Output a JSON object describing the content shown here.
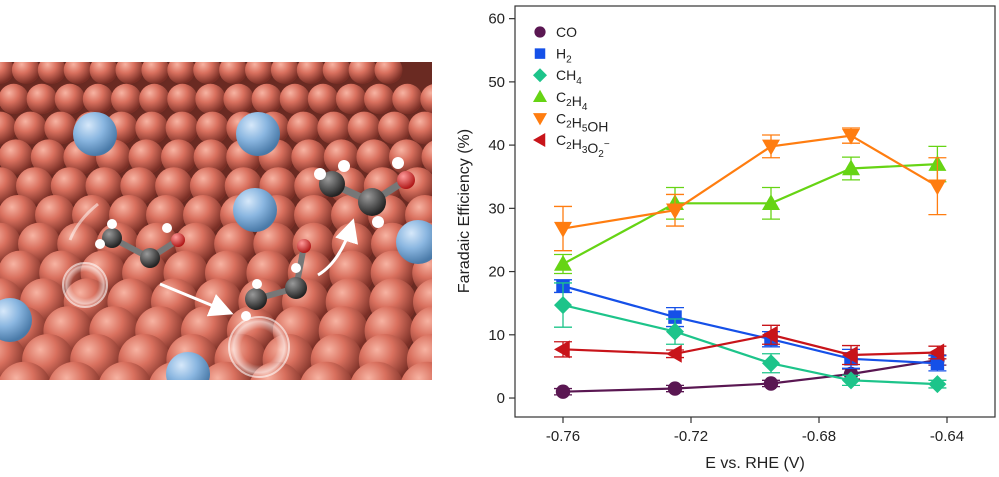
{
  "chart_data": {
    "type": "line",
    "title": "",
    "xlabel": "E vs. RHE (V)",
    "ylabel": "Faradaic Efficiency (%)",
    "xlim": [
      -0.775,
      -0.625
    ],
    "ylim": [
      -3,
      62
    ],
    "xticks": [
      -0.76,
      -0.72,
      -0.68,
      -0.64
    ],
    "xtick_labels": [
      "-0.76",
      "-0.72",
      "-0.68",
      "-0.64"
    ],
    "yticks": [
      0,
      10,
      20,
      30,
      40,
      50,
      60
    ],
    "ytick_labels": [
      "0",
      "10",
      "20",
      "30",
      "40",
      "50",
      "60"
    ],
    "grid": false,
    "legend_position": "top-left",
    "x": [
      -0.76,
      -0.725,
      -0.695,
      -0.67,
      -0.643
    ],
    "series": [
      {
        "name": "CO",
        "legend_parts": [
          [
            "CO",
            ""
          ]
        ],
        "marker": "circle",
        "color": "#5a1752",
        "values": [
          1.0,
          1.5,
          2.3,
          3.8,
          6.0
        ],
        "errors": [
          0.5,
          0.5,
          0.5,
          0.8,
          0.8
        ]
      },
      {
        "name": "H2",
        "legend_parts": [
          [
            "H",
            ""
          ],
          [
            "2",
            "sub"
          ]
        ],
        "marker": "square",
        "color": "#1550e8",
        "values": [
          17.7,
          12.8,
          9.3,
          6.2,
          5.5
        ],
        "errors": [
          1.0,
          1.5,
          1.2,
          1.5,
          1.2
        ]
      },
      {
        "name": "CH4",
        "legend_parts": [
          [
            "CH",
            ""
          ],
          [
            "4",
            "sub"
          ]
        ],
        "marker": "diamond",
        "color": "#1dc48a",
        "values": [
          14.7,
          10.5,
          5.5,
          2.8,
          2.2
        ],
        "errors": [
          3.5,
          2.0,
          1.5,
          0.8,
          0.6
        ]
      },
      {
        "name": "C2H4",
        "legend_parts": [
          [
            "C",
            ""
          ],
          [
            "2",
            "sub"
          ],
          [
            "H",
            ""
          ],
          [
            "4",
            "sub"
          ]
        ],
        "marker": "triangle-up",
        "color": "#66d414",
        "values": [
          21.2,
          30.8,
          30.8,
          36.3,
          37.0
        ],
        "errors": [
          1.5,
          2.5,
          2.5,
          1.8,
          2.8
        ]
      },
      {
        "name": "C2H5OH",
        "legend_parts": [
          [
            "C",
            ""
          ],
          [
            "2",
            "sub"
          ],
          [
            "H",
            ""
          ],
          [
            "5",
            "sub"
          ],
          [
            "OH",
            ""
          ]
        ],
        "marker": "triangle-down",
        "color": "#ff7d10",
        "values": [
          26.8,
          29.7,
          39.8,
          41.5,
          33.5
        ],
        "errors": [
          3.5,
          2.5,
          1.8,
          1.2,
          4.5
        ]
      },
      {
        "name": "C2H3O2-",
        "legend_parts": [
          [
            "C",
            ""
          ],
          [
            "2",
            "sub"
          ],
          [
            "H",
            ""
          ],
          [
            "3",
            "sub"
          ],
          [
            "O",
            ""
          ],
          [
            "2",
            "sub"
          ],
          [
            "−",
            "sup"
          ]
        ],
        "marker": "triangle-left",
        "color": "#c8141a",
        "values": [
          7.7,
          7.0,
          10.0,
          6.8,
          7.2
        ],
        "errors": [
          1.2,
          0.6,
          1.5,
          1.5,
          1.0
        ]
      }
    ]
  },
  "illustration": {
    "description_icon": "copper-surface-with-molecule-icon",
    "colors": {
      "copper": "#d9705e",
      "dopant": "#8ab6e0",
      "carbon": "#444444",
      "hydrogen": "#ffffff",
      "oxygen": "#e03a3a"
    }
  }
}
